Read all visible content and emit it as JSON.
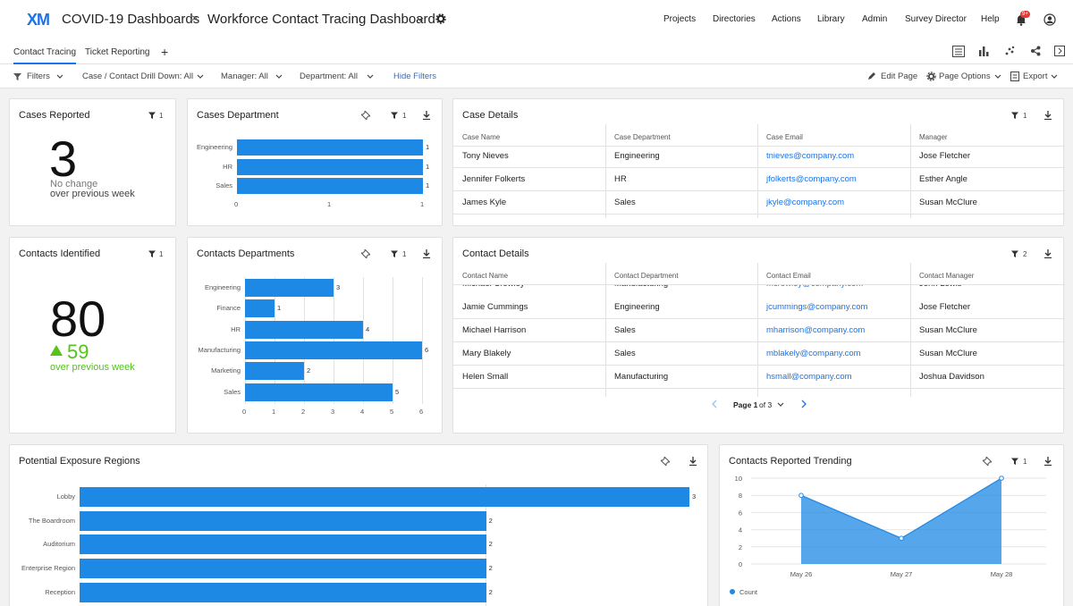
{
  "header": {
    "logo": "XM",
    "breadcrumb_1": "COVID-19 Dashboards",
    "breadcrumb_sep": ">",
    "breadcrumb_2": "Workforce Contact Tracing Dashboard",
    "nav": [
      "Projects",
      "Directories",
      "Actions",
      "Library",
      "Admin",
      "Survey Director",
      "Help"
    ],
    "notif_badge": "9+"
  },
  "tabs": {
    "items": [
      "Contact Tracing",
      "Ticket Reporting"
    ],
    "add": "+"
  },
  "filters": {
    "label": "Filters",
    "case_drill": "Case / Contact Drill Down: All",
    "manager": "Manager:  All",
    "department": "Department:  All",
    "hide": "Hide Filters",
    "edit_page": "Edit Page",
    "page_options": "Page Options",
    "export": "Export"
  },
  "cases_reported": {
    "title": "Cases Reported",
    "filter_count": "1",
    "value": "3",
    "change": "No change",
    "change_sub": "over previous week"
  },
  "contacts_identified": {
    "title": "Contacts Identified",
    "filter_count": "1",
    "value": "80",
    "delta": "59",
    "delta_sub": "over previous week",
    "accent": "#52c41a"
  },
  "cases_department": {
    "title": "Cases Department",
    "filter_count": "1",
    "chart_data": {
      "type": "bar",
      "categories": [
        "Engineering",
        "HR",
        "Sales"
      ],
      "values": [
        1,
        1,
        1
      ],
      "ticks": [
        "0",
        "1",
        "1"
      ],
      "xlim": [
        0,
        1
      ]
    }
  },
  "contacts_departments": {
    "title": "Contacts Departments",
    "filter_count": "1",
    "chart_data": {
      "type": "bar",
      "categories": [
        "Engineering",
        "Finance",
        "HR",
        "Manufacturing",
        "Marketing",
        "Sales"
      ],
      "values": [
        3,
        1,
        4,
        6,
        2,
        5
      ],
      "ticks": [
        "0",
        "1",
        "2",
        "3",
        "4",
        "5",
        "6"
      ],
      "xlim": [
        0,
        6
      ]
    }
  },
  "case_details": {
    "title": "Case Details",
    "filter_count": "1",
    "columns": [
      "Case Name",
      "Case Department",
      "Case Email",
      "Manager"
    ],
    "rows": [
      [
        "Tony Nieves",
        "Engineering",
        "tnieves@company.com",
        "Jose Fletcher"
      ],
      [
        "Jennifer Folkerts",
        "HR",
        "jfolkerts@company.com",
        "Esther Angle"
      ],
      [
        "James Kyle",
        "Sales",
        "jkyle@company.com",
        "Susan McClure"
      ]
    ]
  },
  "contact_details": {
    "title": "Contact Details",
    "filter_count": "2",
    "columns": [
      "Contact Name",
      "Contact Department",
      "Contact Email",
      "Contact Manager"
    ],
    "partial_row": [
      "Michael Crowley",
      "Manufacturing",
      "mcrowley@company.com",
      "John Lewis"
    ],
    "rows": [
      [
        "Jamie Cummings",
        "Engineering",
        "jcummings@company.com",
        "Jose Fletcher"
      ],
      [
        "Michael Harrison",
        "Sales",
        "mharrison@company.com",
        "Susan McClure"
      ],
      [
        "Mary Blakely",
        "Sales",
        "mblakely@company.com",
        "Susan McClure"
      ],
      [
        "Helen Small",
        "Manufacturing",
        "hsmall@company.com",
        "Joshua Davidson"
      ]
    ],
    "page_label": "Page 1",
    "page_of": "of 3"
  },
  "exposure_regions": {
    "title": "Potential Exposure Regions",
    "chart_data": {
      "type": "bar",
      "categories": [
        "Lobby",
        "The Boardroom",
        "Auditorium",
        "Enterprise Region",
        "Reception"
      ],
      "values": [
        3,
        2,
        2,
        2,
        2
      ],
      "xlim": [
        0,
        3
      ]
    }
  },
  "contacts_trending": {
    "title": "Contacts Reported Trending",
    "filter_count": "1",
    "chart_data": {
      "type": "area",
      "x": [
        "May 26",
        "May 27",
        "May 28"
      ],
      "series": [
        {
          "name": "Count",
          "values": [
            8,
            3,
            10
          ]
        }
      ],
      "ylim": [
        0,
        10
      ],
      "yticks": [
        "10",
        "8",
        "6",
        "4",
        "2",
        "0"
      ],
      "color": "#1e88e5"
    }
  }
}
